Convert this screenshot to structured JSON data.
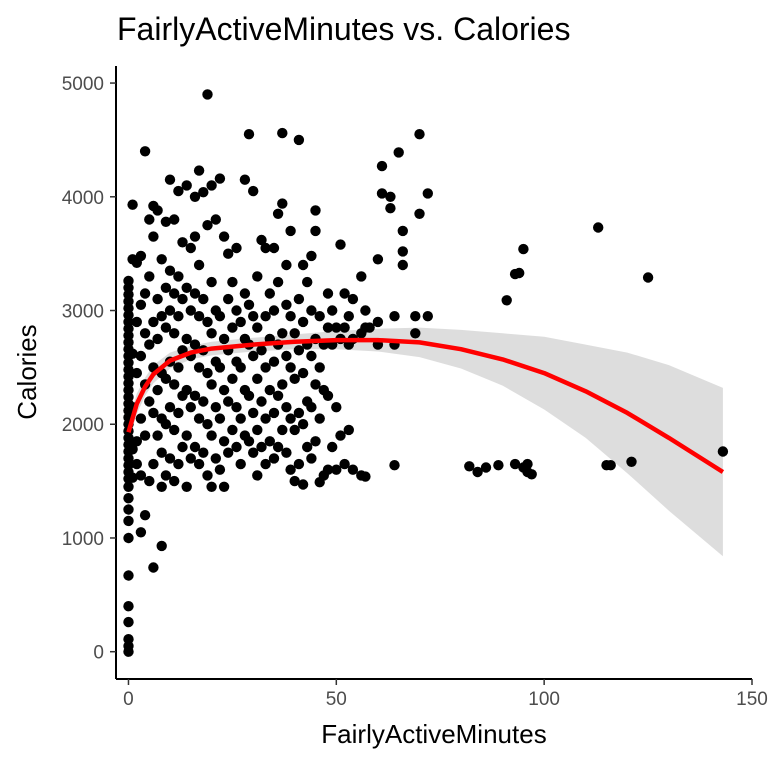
{
  "chart_data": {
    "type": "scatter",
    "title": "FairlyActiveMinutes vs. Calories",
    "xlabel": "FairlyActiveMinutes",
    "ylabel": "Calories",
    "xlim": [
      -3,
      150
    ],
    "ylim": [
      -240,
      5150
    ],
    "x_ticks": [
      0,
      50,
      100,
      150
    ],
    "y_ticks": [
      0,
      1000,
      2000,
      3000,
      4000,
      5000
    ],
    "grid": false,
    "legend": "none",
    "colors": {
      "points": "#000000",
      "trend": "#ff0000",
      "band": "#d9d9d9",
      "axis": "#000000"
    },
    "points": [
      [
        0,
        0
      ],
      [
        0,
        50
      ],
      [
        0,
        110
      ],
      [
        0,
        260
      ],
      [
        0,
        400
      ],
      [
        0,
        670
      ],
      [
        0,
        1000
      ],
      [
        0,
        1150
      ],
      [
        0,
        1250
      ],
      [
        0,
        1350
      ],
      [
        0,
        1450
      ],
      [
        0,
        1520
      ],
      [
        0,
        1580
      ],
      [
        0,
        1640
      ],
      [
        0,
        1700
      ],
      [
        0,
        1760
      ],
      [
        0,
        1820
      ],
      [
        0,
        1880
      ],
      [
        0,
        1940
      ],
      [
        0,
        2000
      ],
      [
        0,
        2060
      ],
      [
        0,
        2120
      ],
      [
        0,
        2180
      ],
      [
        0,
        2240
      ],
      [
        0,
        2300
      ],
      [
        0,
        2360
      ],
      [
        0,
        2420
      ],
      [
        0,
        2480
      ],
      [
        0,
        2540
      ],
      [
        0,
        2600
      ],
      [
        0,
        2660
      ],
      [
        0,
        2720
      ],
      [
        0,
        2780
      ],
      [
        0,
        2840
      ],
      [
        0,
        2900
      ],
      [
        0,
        2960
      ],
      [
        0,
        3020
      ],
      [
        0,
        3080
      ],
      [
        0,
        3140
      ],
      [
        0,
        3200
      ],
      [
        0,
        3260
      ],
      [
        1,
        1530
      ],
      [
        1,
        1780
      ],
      [
        1,
        2150
      ],
      [
        1,
        2620
      ],
      [
        1,
        3450
      ],
      [
        1,
        3930
      ],
      [
        2,
        3420
      ],
      [
        2,
        2900
      ],
      [
        2,
        2450
      ],
      [
        2,
        1850
      ],
      [
        2,
        1650
      ],
      [
        3,
        1050
      ],
      [
        3,
        1550
      ],
      [
        3,
        2050
      ],
      [
        3,
        2600
      ],
      [
        3,
        3050
      ],
      [
        3,
        3480
      ],
      [
        4,
        1200
      ],
      [
        4,
        1900
      ],
      [
        4,
        2350
      ],
      [
        4,
        2800
      ],
      [
        4,
        3150
      ],
      [
        4,
        4400
      ],
      [
        5,
        1500
      ],
      [
        5,
        2200
      ],
      [
        5,
        2700
      ],
      [
        5,
        3300
      ],
      [
        5,
        3800
      ],
      [
        6,
        740
      ],
      [
        6,
        1650
      ],
      [
        6,
        2100
      ],
      [
        6,
        2500
      ],
      [
        6,
        2900
      ],
      [
        6,
        3650
      ],
      [
        6,
        3920
      ],
      [
        7,
        1900
      ],
      [
        7,
        2300
      ],
      [
        7,
        2750
      ],
      [
        7,
        3100
      ],
      [
        7,
        3880
      ],
      [
        8,
        930
      ],
      [
        8,
        1450
      ],
      [
        8,
        1750
      ],
      [
        8,
        2050
      ],
      [
        8,
        2450
      ],
      [
        8,
        2950
      ],
      [
        8,
        3450
      ],
      [
        9,
        1550
      ],
      [
        9,
        2000
      ],
      [
        9,
        2400
      ],
      [
        9,
        2850
      ],
      [
        9,
        3200
      ],
      [
        9,
        3780
      ],
      [
        10,
        1700
      ],
      [
        10,
        2150
      ],
      [
        10,
        2550
      ],
      [
        10,
        3000
      ],
      [
        10,
        3350
      ],
      [
        10,
        4150
      ],
      [
        11,
        1500
      ],
      [
        11,
        1950
      ],
      [
        11,
        2350
      ],
      [
        11,
        2800
      ],
      [
        11,
        3150
      ],
      [
        11,
        3800
      ],
      [
        12,
        1650
      ],
      [
        12,
        2100
      ],
      [
        12,
        2500
      ],
      [
        12,
        2950
      ],
      [
        12,
        3300
      ],
      [
        12,
        4050
      ],
      [
        13,
        1800
      ],
      [
        13,
        2250
      ],
      [
        13,
        2650
      ],
      [
        13,
        3100
      ],
      [
        13,
        3600
      ],
      [
        14,
        1450
      ],
      [
        14,
        1900
      ],
      [
        14,
        2300
      ],
      [
        14,
        2750
      ],
      [
        14,
        3200
      ],
      [
        14,
        4100
      ],
      [
        15,
        1700
      ],
      [
        15,
        2150
      ],
      [
        15,
        2600
      ],
      [
        15,
        3000
      ],
      [
        15,
        3550
      ],
      [
        16,
        1800
      ],
      [
        16,
        2250
      ],
      [
        16,
        2700
      ],
      [
        16,
        3150
      ],
      [
        16,
        3650
      ],
      [
        16,
        4000
      ],
      [
        17,
        1650
      ],
      [
        17,
        2050
      ],
      [
        17,
        2500
      ],
      [
        17,
        2950
      ],
      [
        17,
        3400
      ],
      [
        17,
        4230
      ],
      [
        18,
        1750
      ],
      [
        18,
        2200
      ],
      [
        18,
        2650
      ],
      [
        18,
        3100
      ],
      [
        18,
        4040
      ],
      [
        19,
        1550
      ],
      [
        19,
        2000
      ],
      [
        19,
        2450
      ],
      [
        19,
        2900
      ],
      [
        19,
        3750
      ],
      [
        19,
        4900
      ],
      [
        20,
        1450
      ],
      [
        20,
        1900
      ],
      [
        20,
        2350
      ],
      [
        20,
        2800
      ],
      [
        20,
        3250
      ],
      [
        20,
        4100
      ],
      [
        21,
        1700
      ],
      [
        21,
        2150
      ],
      [
        21,
        2550
      ],
      [
        21,
        3000
      ],
      [
        21,
        3800
      ],
      [
        22,
        1600
      ],
      [
        22,
        2050
      ],
      [
        22,
        2500
      ],
      [
        22,
        2950
      ],
      [
        22,
        4160
      ],
      [
        23,
        1450
      ],
      [
        23,
        1850
      ],
      [
        23,
        2300
      ],
      [
        23,
        2750
      ],
      [
        23,
        3650
      ],
      [
        24,
        1750
      ],
      [
        24,
        2200
      ],
      [
        24,
        2650
      ],
      [
        24,
        3100
      ],
      [
        24,
        3500
      ],
      [
        25,
        1950
      ],
      [
        25,
        2400
      ],
      [
        25,
        2850
      ],
      [
        25,
        3250
      ],
      [
        26,
        1800
      ],
      [
        26,
        2150
      ],
      [
        26,
        2550
      ],
      [
        26,
        3000
      ],
      [
        26,
        3550
      ],
      [
        27,
        1650
      ],
      [
        27,
        2050
      ],
      [
        27,
        2500
      ],
      [
        27,
        2900
      ],
      [
        28,
        1900
      ],
      [
        28,
        2300
      ],
      [
        28,
        2750
      ],
      [
        28,
        3150
      ],
      [
        28,
        4150
      ],
      [
        29,
        1850
      ],
      [
        29,
        2250
      ],
      [
        29,
        2700
      ],
      [
        29,
        3050
      ],
      [
        29,
        4550
      ],
      [
        30,
        1750
      ],
      [
        30,
        2100
      ],
      [
        30,
        2600
      ],
      [
        30,
        2950
      ],
      [
        30,
        4050
      ],
      [
        31,
        1550
      ],
      [
        31,
        1950
      ],
      [
        31,
        2400
      ],
      [
        31,
        2850
      ],
      [
        31,
        3300
      ],
      [
        32,
        1800
      ],
      [
        32,
        2200
      ],
      [
        32,
        2650
      ],
      [
        32,
        3620
      ],
      [
        33,
        1650
      ],
      [
        33,
        2050
      ],
      [
        33,
        2500
      ],
      [
        33,
        2950
      ],
      [
        33,
        3550
      ],
      [
        34,
        1850
      ],
      [
        34,
        2300
      ],
      [
        34,
        2750
      ],
      [
        34,
        3150
      ],
      [
        35,
        1700
      ],
      [
        35,
        2100
      ],
      [
        35,
        2550
      ],
      [
        35,
        3000
      ],
      [
        35,
        3550
      ],
      [
        36,
        1800
      ],
      [
        36,
        2250
      ],
      [
        36,
        2700
      ],
      [
        36,
        3250
      ],
      [
        36,
        3850
      ],
      [
        37,
        1950
      ],
      [
        37,
        2350
      ],
      [
        37,
        2800
      ],
      [
        37,
        4560
      ],
      [
        37,
        3940
      ],
      [
        38,
        1750
      ],
      [
        38,
        2150
      ],
      [
        38,
        2600
      ],
      [
        38,
        3050
      ],
      [
        38,
        3400
      ],
      [
        39,
        1600
      ],
      [
        39,
        2050
      ],
      [
        39,
        2500
      ],
      [
        39,
        2950
      ],
      [
        39,
        3700
      ],
      [
        40,
        1500
      ],
      [
        40,
        1950
      ],
      [
        40,
        2400
      ],
      [
        40,
        2800
      ],
      [
        41,
        1650
      ],
      [
        41,
        2100
      ],
      [
        41,
        2650
      ],
      [
        41,
        3100
      ],
      [
        41,
        4500
      ],
      [
        42,
        1470
      ],
      [
        42,
        2000
      ],
      [
        42,
        2450
      ],
      [
        42,
        2900
      ],
      [
        42,
        3400
      ],
      [
        43,
        1800
      ],
      [
        43,
        2200
      ],
      [
        43,
        2700
      ],
      [
        43,
        3250
      ],
      [
        44,
        1700
      ],
      [
        44,
        2150
      ],
      [
        44,
        2600
      ],
      [
        44,
        3000
      ],
      [
        44,
        3480
      ],
      [
        45,
        1850
      ],
      [
        45,
        2350
      ],
      [
        45,
        2750
      ],
      [
        45,
        3700
      ],
      [
        45,
        3880
      ],
      [
        46,
        1490
      ],
      [
        46,
        2050
      ],
      [
        46,
        2500
      ],
      [
        46,
        2950
      ],
      [
        47,
        1550
      ],
      [
        47,
        2300
      ],
      [
        47,
        2700
      ],
      [
        48,
        1600
      ],
      [
        48,
        2250
      ],
      [
        48,
        2850
      ],
      [
        48,
        3150
      ],
      [
        49,
        1800
      ],
      [
        49,
        2700
      ],
      [
        49,
        3000
      ],
      [
        50,
        1600
      ],
      [
        50,
        2150
      ],
      [
        50,
        2850
      ],
      [
        51,
        1900
      ],
      [
        51,
        2750
      ],
      [
        51,
        3580
      ],
      [
        52,
        1650
      ],
      [
        52,
        2850
      ],
      [
        52,
        3150
      ],
      [
        53,
        1950
      ],
      [
        53,
        2700
      ],
      [
        53,
        2950
      ],
      [
        54,
        1600
      ],
      [
        54,
        2750
      ],
      [
        54,
        3100
      ],
      [
        56,
        1550
      ],
      [
        56,
        2800
      ],
      [
        56,
        3300
      ],
      [
        57,
        1540
      ],
      [
        57,
        2850
      ],
      [
        57,
        3000
      ],
      [
        58,
        2850
      ],
      [
        60,
        2700
      ],
      [
        60,
        2900
      ],
      [
        60,
        3450
      ],
      [
        61,
        4270
      ],
      [
        61,
        4030
      ],
      [
        63,
        3900
      ],
      [
        63,
        4000
      ],
      [
        64,
        1640
      ],
      [
        64,
        2950
      ],
      [
        64,
        2700
      ],
      [
        65,
        4390
      ],
      [
        66,
        3400
      ],
      [
        66,
        3700
      ],
      [
        66,
        3520
      ],
      [
        69,
        2950
      ],
      [
        69,
        2800
      ],
      [
        70,
        4550
      ],
      [
        70,
        3850
      ],
      [
        72,
        2950
      ],
      [
        72,
        4030
      ],
      [
        82,
        1630
      ],
      [
        84,
        1580
      ],
      [
        86,
        1620
      ],
      [
        89,
        1640
      ],
      [
        91,
        3090
      ],
      [
        93,
        1650
      ],
      [
        93,
        3320
      ],
      [
        94,
        3330
      ],
      [
        95,
        3540
      ],
      [
        95,
        1620
      ],
      [
        96,
        1650
      ],
      [
        96,
        1580
      ],
      [
        97,
        1560
      ],
      [
        113,
        3730
      ],
      [
        115,
        1640
      ],
      [
        116,
        1640
      ],
      [
        121,
        1670
      ],
      [
        125,
        3290
      ],
      [
        143,
        1760
      ]
    ],
    "trend": {
      "x": [
        0,
        2,
        4,
        6,
        10,
        15,
        20,
        30,
        40,
        50,
        60,
        70,
        80,
        90,
        100,
        110,
        120,
        130,
        143
      ],
      "y": [
        1930,
        2180,
        2330,
        2440,
        2560,
        2630,
        2665,
        2700,
        2725,
        2740,
        2740,
        2720,
        2660,
        2570,
        2450,
        2290,
        2100,
        1880,
        1580
      ]
    },
    "band": {
      "x": [
        0,
        2,
        4,
        6,
        10,
        15,
        20,
        30,
        40,
        50,
        60,
        70,
        80,
        90,
        100,
        110,
        120,
        130,
        143
      ],
      "lower": [
        1840,
        2090,
        2250,
        2360,
        2490,
        2570,
        2605,
        2640,
        2660,
        2660,
        2640,
        2590,
        2490,
        2340,
        2130,
        1880,
        1570,
        1240,
        840
      ],
      "upper": [
        2020,
        2270,
        2410,
        2520,
        2630,
        2690,
        2725,
        2760,
        2790,
        2820,
        2840,
        2850,
        2830,
        2800,
        2770,
        2700,
        2630,
        2520,
        2320
      ]
    }
  }
}
